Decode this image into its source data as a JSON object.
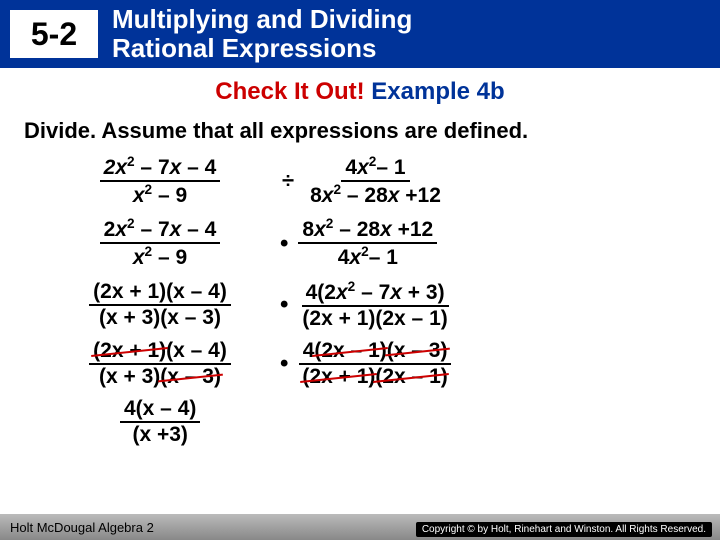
{
  "header": {
    "lesson_number": "5-2",
    "title_line1": "Multiplying and Dividing",
    "title_line2": "Rational Expressions"
  },
  "subtitle": {
    "part1": "Check It Out! ",
    "part2": "Example 4b"
  },
  "instruction": "Divide. Assume that all expressions are defined.",
  "steps": {
    "r1": {
      "left_num": "2x² – 7x – 4",
      "left_den": "x² – 9",
      "op": "÷",
      "right_num": "4x²– 1",
      "right_den": "8x² – 28x +12"
    },
    "r2": {
      "left_num": "2x² – 7x – 4",
      "left_den": "x² – 9",
      "right_num": "8x² – 28x +12",
      "right_den": "4x²– 1"
    },
    "r3": {
      "left_num": "(2x + 1)(x – 4)",
      "left_den": "(x + 3)(x – 3)",
      "right_num": "4(2x² – 7x + 3)",
      "right_den": "(2x + 1)(2x – 1)"
    },
    "r4": {
      "l_a": "(2x + 1)",
      "l_b": "(x – 4)",
      "l_c": "(x + 3)",
      "l_d": "(x – 3)",
      "r_a": "4",
      "r_b": "(2x – 1)",
      "r_c": "(x – 3)",
      "r_d": "(2x + 1)",
      "r_e": "(2x – 1)"
    },
    "answer": {
      "num": "4(x – 4)",
      "den": "(x +3)"
    }
  },
  "footer": {
    "text": "Holt McDougal Algebra 2",
    "copyright": "Copyright © by Holt, Rinehart and Winston. All Rights Reserved."
  },
  "colors": {
    "header_bg": "#003399",
    "red": "#cc0000"
  }
}
